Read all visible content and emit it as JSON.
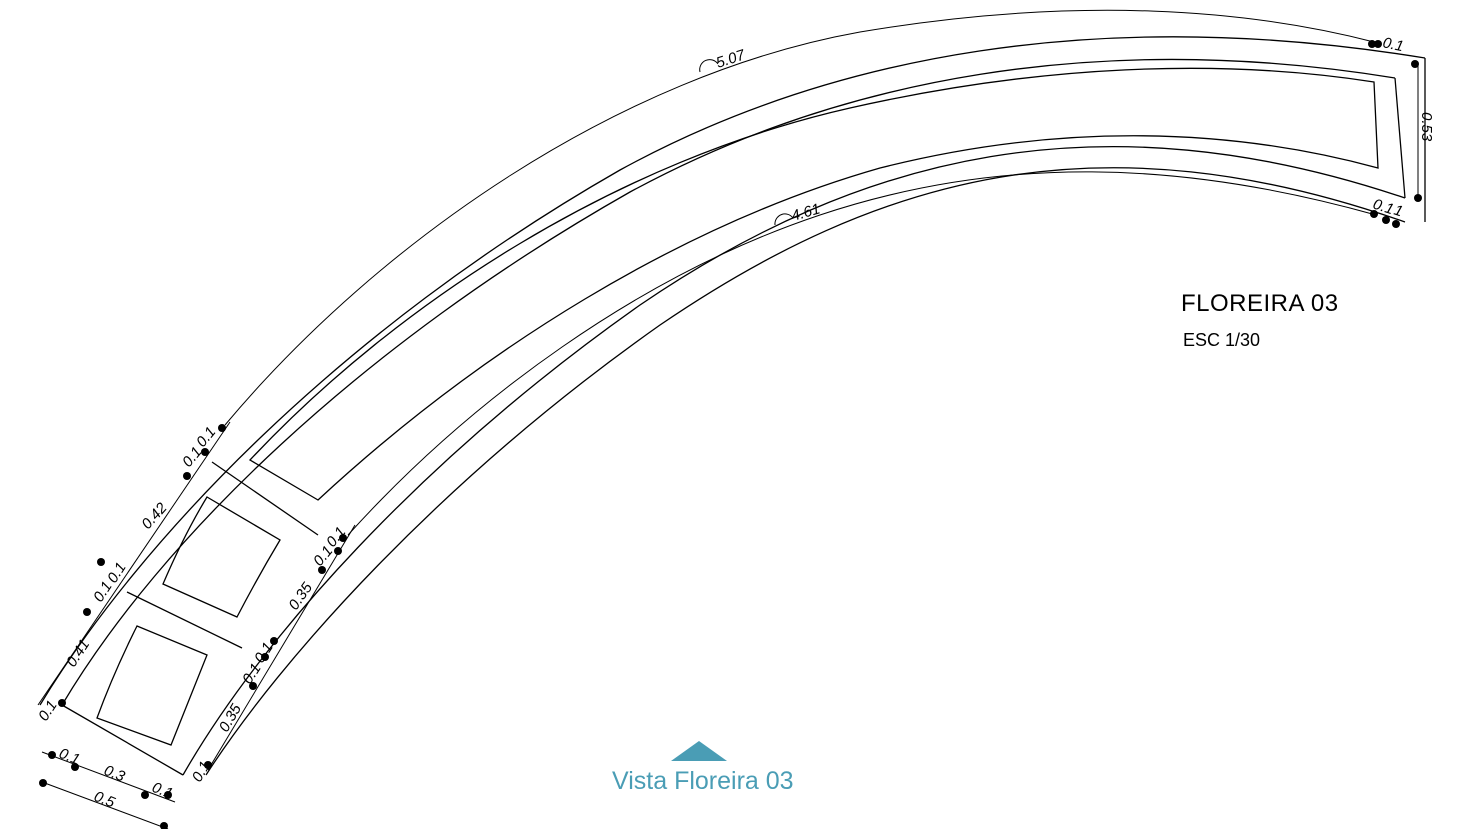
{
  "title": "FLOREIRA 03",
  "scale": "ESC 1/30",
  "view_label": "Vista Floreira 03",
  "colors": {
    "line": "#000000",
    "view_accent": "#4a9db5"
  },
  "arc_dimensions": {
    "outer": "5.07",
    "inner": "4.61"
  },
  "end_dimensions": {
    "end_wall": "0.1",
    "end_width": "0.53",
    "end_inner": "0.1",
    "end_inner_b": "1"
  },
  "outer_wall_dimensions": [
    "0.1",
    "0.41",
    "0.1",
    "0.1",
    "0.42",
    "0.1",
    "0.1"
  ],
  "inner_wall_dimensions": [
    "0.1",
    "0.35",
    "0.1",
    "0.1",
    "0.35",
    "0.1",
    "0.1"
  ],
  "base_dimensions": {
    "left": "0.1",
    "middle": "0.3",
    "right": "0.1",
    "total": "0.5"
  }
}
